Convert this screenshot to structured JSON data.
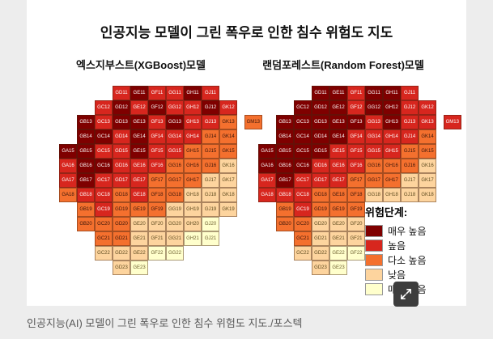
{
  "figure": {
    "title": "인공지능 모델이 그린 폭우로 인한 침수 위험도 지도"
  },
  "caption": "인공지능(AI) 모델이 그린 폭우로 인한 침수 위험도 지도./포스텍",
  "legend": {
    "title": "위험단계:",
    "items": [
      {
        "label": "매우 높음",
        "color": "#7f0000"
      },
      {
        "label": "높음",
        "color": "#d7261e"
      },
      {
        "label": "다소 높음",
        "color": "#f4702e"
      },
      {
        "label": "낮음",
        "color": "#fdd49e"
      },
      {
        "label": "매우 낮음",
        "color": "#ffffcc"
      }
    ]
  },
  "expand_icon": "fullscreen-expand",
  "chart_data": {
    "type": "heatmap",
    "title": "인공지능 모델이 그린 폭우로 인한 침수 위험도 지도",
    "legend_position": "right-bottom",
    "levels_scale": {
      "1": "매우 높음",
      "2": "높음",
      "3": "다소 높음",
      "4": "낮음",
      "5": "매우 낮음"
    },
    "grid_rows": [
      {
        "segments": [
          {
            "x": 3,
            "codes": [
              "GD11",
              "GE11",
              "GF11",
              "GG11",
              "GH11",
              "GJ11"
            ]
          }
        ]
      },
      {
        "segments": [
          {
            "x": 2,
            "codes": [
              "GC12",
              "GD12",
              "GE12",
              "GF12",
              "GG12",
              "GH12",
              "GJ12",
              "GK12"
            ]
          }
        ]
      },
      {
        "segments": [
          {
            "x": 1,
            "codes": [
              "GB13",
              "GC13",
              "GD13",
              "GE13",
              "GF13",
              "GG13",
              "GH13",
              "GJ13",
              "GK13"
            ]
          },
          {
            "x": 10.4,
            "codes": [
              "GM13"
            ]
          }
        ]
      },
      {
        "segments": [
          {
            "x": 1,
            "codes": [
              "GB14",
              "GC14",
              "GD14",
              "GE14",
              "GF14",
              "GG14",
              "GH14",
              "GJ14",
              "GK14"
            ]
          }
        ]
      },
      {
        "segments": [
          {
            "x": 0,
            "codes": [
              "GA15",
              "GB15",
              "GC15",
              "GD15",
              "GE15",
              "GF15",
              "GG15",
              "GH15",
              "GJ15",
              "GK15"
            ]
          }
        ]
      },
      {
        "segments": [
          {
            "x": 0,
            "codes": [
              "GA16",
              "GB16",
              "GC16",
              "GD16",
              "GE16",
              "GF16",
              "GG16",
              "GH16",
              "GJ16",
              "GK16"
            ]
          }
        ]
      },
      {
        "segments": [
          {
            "x": 0,
            "codes": [
              "GA17",
              "GB17",
              "GC17",
              "GD17",
              "GE17",
              "GF17",
              "GG17",
              "GH17",
              "GJ17",
              "GK17"
            ]
          }
        ]
      },
      {
        "segments": [
          {
            "x": 0,
            "codes": [
              "GA18",
              "GB18",
              "GC18",
              "GD18",
              "GE18",
              "GF18",
              "GG18",
              "GH18",
              "GJ18",
              "GK18"
            ]
          }
        ]
      },
      {
        "segments": [
          {
            "x": 1,
            "codes": [
              "GB19",
              "GC19",
              "GD19",
              "GE19",
              "GF19",
              "GG19",
              "GH19",
              "GJ19",
              "GK19"
            ]
          }
        ]
      },
      {
        "segments": [
          {
            "x": 1,
            "codes": [
              "GB20",
              "GC20",
              "GD20",
              "GE20",
              "GF20",
              "GG20",
              "GH20",
              "GJ20"
            ]
          }
        ]
      },
      {
        "segments": [
          {
            "x": 2,
            "codes": [
              "GC21",
              "GD21",
              "GE21",
              "GF21",
              "GG21",
              "GH21",
              "GJ21"
            ]
          }
        ]
      },
      {
        "segments": [
          {
            "x": 2,
            "codes": [
              "GC22",
              "GD22",
              "GE22",
              "GF22",
              "GG22"
            ]
          }
        ]
      },
      {
        "segments": [
          {
            "x": 3,
            "codes": [
              "GD23",
              "GE23"
            ]
          }
        ]
      }
    ],
    "series": [
      {
        "name": "엑스지부스트(XGBoost)모델",
        "levels": [
          [
            "212212"
          ],
          [
            "21212212"
          ],
          [
            "121121223",
            "3"
          ],
          [
            "112122233"
          ],
          [
            "1122122333"
          ],
          [
            "2112223334"
          ],
          [
            "2122233344"
          ],
          [
            "3223233444"
          ],
          [
            "323334444"
          ],
          [
            "33344445"
          ],
          [
            "3344455"
          ],
          [
            "44455"
          ],
          [
            "45"
          ]
        ]
      },
      {
        "name": "랜덤포레스트(Random Forest)모델",
        "levels": [
          [
            "112112"
          ],
          [
            "11121122"
          ],
          [
            "111112122",
            "2"
          ],
          [
            "111122223"
          ],
          [
            "1111222233"
          ],
          [
            "1112223334"
          ],
          [
            "2122233344"
          ],
          [
            "2223334444"
          ],
          [
            "323334444"
          ],
          [
            "33444455"
          ],
          [
            "3444555"
          ],
          [
            "44555"
          ],
          [
            "45"
          ]
        ]
      }
    ]
  }
}
